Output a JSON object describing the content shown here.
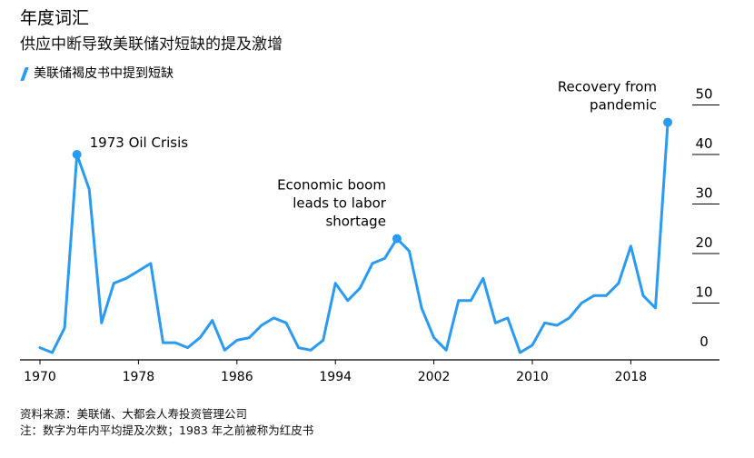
{
  "header": {
    "title": "年度词汇",
    "subtitle": "供应中断导致美联储对短缺的提及激增",
    "legend_label": "美联储褐皮书中提到短缺"
  },
  "footer": {
    "source": "资料来源：美联储、大都会人寿投资管理公司",
    "note": "注：数字为年内平均提及次数；1983 年之前被称为红皮书"
  },
  "chart_data": {
    "type": "line",
    "title": "年度词汇",
    "subtitle": "供应中断导致美联储对短缺的提及激增",
    "xlabel": "",
    "ylabel": "",
    "xlim": [
      1970,
      2021
    ],
    "ylim": [
      0,
      50
    ],
    "x_ticks": [
      1970,
      1978,
      1986,
      1994,
      2002,
      2010,
      2018
    ],
    "y_ticks": [
      0,
      10,
      20,
      30,
      40,
      50
    ],
    "y_axis_side": "right",
    "line_color": "#2b9af3",
    "series": [
      {
        "name": "美联储褐皮书中提到短缺",
        "x": [
          1970,
          1971,
          1972,
          1973,
          1974,
          1975,
          1976,
          1977,
          1978,
          1979,
          1980,
          1981,
          1982,
          1983,
          1984,
          1985,
          1986,
          1987,
          1988,
          1989,
          1990,
          1991,
          1992,
          1993,
          1994,
          1995,
          1996,
          1997,
          1998,
          1999,
          2000,
          2001,
          2002,
          2003,
          2004,
          2005,
          2006,
          2007,
          2008,
          2009,
          2010,
          2011,
          2012,
          2013,
          2014,
          2015,
          2016,
          2017,
          2018,
          2019,
          2020,
          2021
        ],
        "values": [
          1,
          0,
          5,
          40,
          33,
          6,
          14,
          15,
          16.5,
          18,
          2,
          2,
          1,
          3,
          6.5,
          0.5,
          2.5,
          3,
          5.5,
          7,
          6,
          1,
          0.5,
          2.5,
          14,
          10.5,
          13,
          18,
          19,
          23,
          20.5,
          9,
          3,
          0.5,
          10.5,
          10.5,
          15,
          6,
          7,
          0,
          1.5,
          6,
          5.5,
          7,
          10,
          11.5,
          11.5,
          14,
          21.5,
          11.5,
          9,
          46.5
        ]
      }
    ],
    "annotations": [
      {
        "text": "1973 Oil Crisis",
        "x": 1973,
        "y": 40,
        "lines": [
          "1973 Oil Crisis"
        ],
        "align": "right-of-point"
      },
      {
        "text": "Economic boom leads to labor shortage",
        "x": 1999,
        "y": 23,
        "lines": [
          "Economic boom",
          "leads to labor",
          "shortage"
        ],
        "align": "left-of-point"
      },
      {
        "text": "Recovery from pandemic",
        "x": 2021,
        "y": 46.5,
        "lines": [
          "Recovery from",
          "pandemic"
        ],
        "align": "left-of-point"
      }
    ],
    "grid": false
  }
}
